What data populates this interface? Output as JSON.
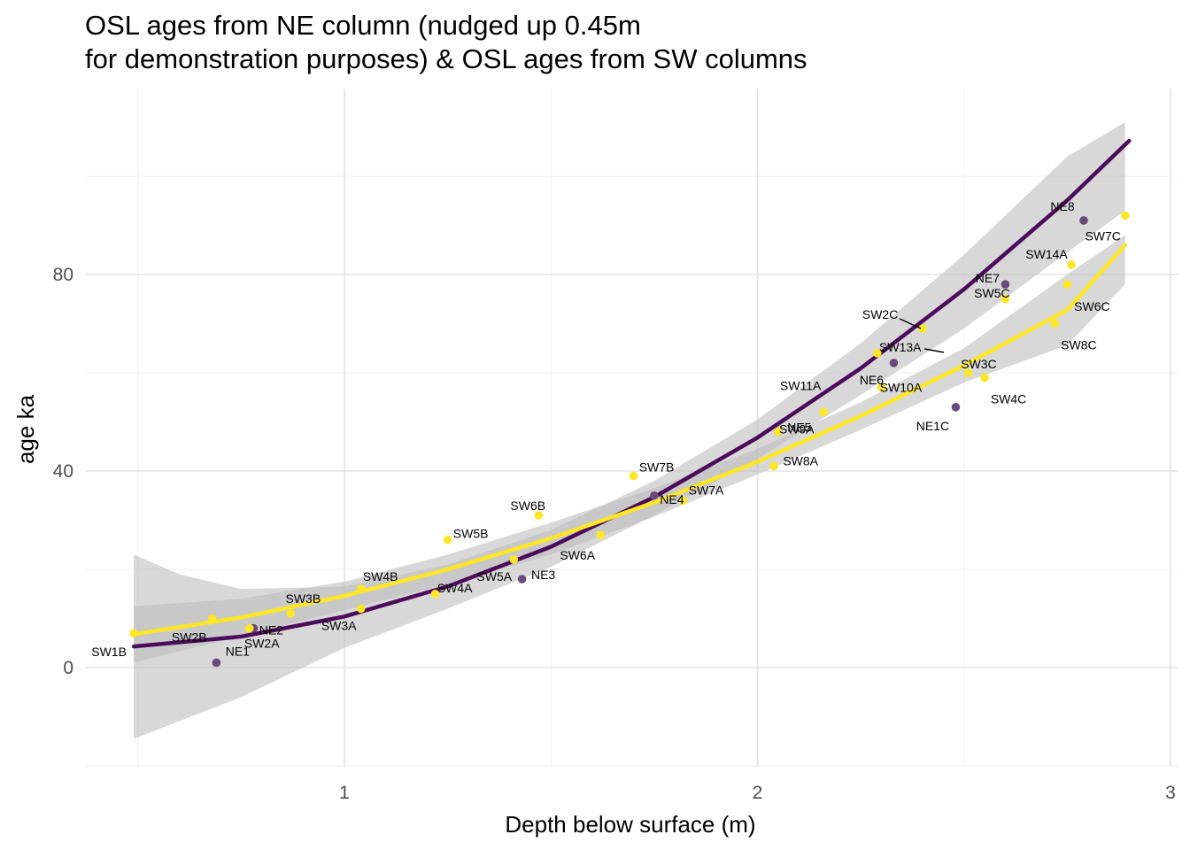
{
  "title_line1": "OSL ages from NE column (nudged up 0.45m",
  "title_line2": "for demonstration purposes) & OSL ages from SW columns",
  "chart_data": {
    "type": "scatter",
    "title": "OSL ages from NE column (nudged up 0.45m\nfor demonstration purposes) & OSL ages from SW columns",
    "xlabel": "Depth below surface (m)",
    "ylabel": "age ka",
    "xlim": [
      0.4,
      3.02
    ],
    "ylim": [
      -20,
      110
    ],
    "x_ticks": [
      1,
      2,
      3
    ],
    "y_ticks": [
      0,
      40,
      80
    ],
    "grid": true,
    "colors": {
      "ne": "#440154",
      "ne_point": "#6a4a7c",
      "sw": "#fde725",
      "ribbon": "#bebebe"
    },
    "series": [
      {
        "key": "ne",
        "points": [
          {
            "label": "NE1",
            "x": 0.69,
            "y": 1
          },
          {
            "label": "NE2",
            "x": 0.78,
            "y": 8
          },
          {
            "label": "NE3",
            "x": 1.43,
            "y": 18
          },
          {
            "label": "NE4",
            "x": 1.75,
            "y": 35
          },
          {
            "label": "NE5",
            "x": 2.05,
            "y": 48
          },
          {
            "label": "NE6",
            "x": 2.33,
            "y": 62
          },
          {
            "label": "NE1C",
            "x": 2.48,
            "y": 53
          },
          {
            "label": "NE7",
            "x": 2.6,
            "y": 78
          },
          {
            "label": "NE8",
            "x": 2.79,
            "y": 91
          }
        ],
        "fit": [
          [
            0.49,
            4.3
          ],
          [
            0.75,
            6.3
          ],
          [
            1.0,
            10.4
          ],
          [
            1.25,
            16.5
          ],
          [
            1.5,
            24.6
          ],
          [
            1.75,
            34.7
          ],
          [
            2.0,
            46.8
          ],
          [
            2.25,
            60.9
          ],
          [
            2.5,
            77.0
          ],
          [
            2.75,
            95.1
          ],
          [
            2.9,
            107.2
          ]
        ],
        "ribbon_upper": [
          [
            0.49,
            23
          ],
          [
            0.6,
            19
          ],
          [
            0.75,
            16
          ],
          [
            1.0,
            16.5
          ],
          [
            1.25,
            21
          ],
          [
            1.5,
            28
          ],
          [
            1.75,
            38
          ],
          [
            2.0,
            50.5
          ],
          [
            2.25,
            66
          ],
          [
            2.5,
            84
          ],
          [
            2.75,
            104
          ],
          [
            2.89,
            111
          ]
        ],
        "ribbon_lower": [
          [
            0.49,
            -14.5
          ],
          [
            0.75,
            -6
          ],
          [
            1.0,
            4
          ],
          [
            1.25,
            12
          ],
          [
            1.5,
            20.5
          ],
          [
            1.75,
            31
          ],
          [
            2.0,
            42.5
          ],
          [
            2.25,
            55.5
          ],
          [
            2.5,
            69
          ],
          [
            2.75,
            84.5
          ],
          [
            2.89,
            93
          ]
        ]
      },
      {
        "key": "sw",
        "points": [
          {
            "label": "SW1B",
            "x": 0.49,
            "y": 7
          },
          {
            "label": "SW2B",
            "x": 0.68,
            "y": 10
          },
          {
            "label": "SW2A",
            "x": 0.77,
            "y": 8
          },
          {
            "label": "SW3B",
            "x": 0.87,
            "y": 11
          },
          {
            "label": "SW3A",
            "x": 1.04,
            "y": 12
          },
          {
            "label": "SW4B",
            "x": 1.04,
            "y": 16
          },
          {
            "label": "SW4A",
            "x": 1.22,
            "y": 15
          },
          {
            "label": "SW5B",
            "x": 1.25,
            "y": 26
          },
          {
            "label": "SW5A",
            "x": 1.41,
            "y": 22
          },
          {
            "label": "SW6B",
            "x": 1.47,
            "y": 31
          },
          {
            "label": "SW6A",
            "x": 1.62,
            "y": 27
          },
          {
            "label": "SW7B",
            "x": 1.7,
            "y": 39
          },
          {
            "label": "SW7A",
            "x": 1.82,
            "y": 34
          },
          {
            "label": "SW8A",
            "x": 2.04,
            "y": 41
          },
          {
            "label": "SW9A",
            "x": 2.05,
            "y": 48
          },
          {
            "label": "SW11A",
            "x": 2.16,
            "y": 52
          },
          {
            "label": "SW10A",
            "x": 2.3,
            "y": 57
          },
          {
            "label": "SW13A",
            "x": 2.29,
            "y": 64
          },
          {
            "label": "SW2C",
            "x": 2.4,
            "y": 69
          },
          {
            "label": "SW3C",
            "x": 2.51,
            "y": 60
          },
          {
            "label": "SW4C",
            "x": 2.55,
            "y": 59
          },
          {
            "label": "SW5C",
            "x": 2.6,
            "y": 75
          },
          {
            "label": "SW8C",
            "x": 2.72,
            "y": 70
          },
          {
            "label": "SW6C",
            "x": 2.75,
            "y": 78
          },
          {
            "label": "SW14A",
            "x": 2.76,
            "y": 82
          },
          {
            "label": "SW7C",
            "x": 2.89,
            "y": 92
          }
        ],
        "fit": [
          [
            0.49,
            6.8
          ],
          [
            0.75,
            10.2
          ],
          [
            1.0,
            14.6
          ],
          [
            1.25,
            20.0
          ],
          [
            1.5,
            26.3
          ],
          [
            1.75,
            33.6
          ],
          [
            2.0,
            41.9
          ],
          [
            2.25,
            51.2
          ],
          [
            2.5,
            61.5
          ],
          [
            2.75,
            72.8
          ],
          [
            2.89,
            86
          ]
        ],
        "ribbon_upper": [
          [
            0.49,
            12.5
          ],
          [
            0.75,
            14
          ],
          [
            1.0,
            17.5
          ],
          [
            1.25,
            23
          ],
          [
            1.5,
            29.5
          ],
          [
            1.75,
            36.5
          ],
          [
            2.0,
            44.5
          ],
          [
            2.25,
            54
          ],
          [
            2.5,
            65
          ],
          [
            2.75,
            80
          ],
          [
            2.89,
            88
          ]
        ],
        "ribbon_lower": [
          [
            0.49,
            1
          ],
          [
            0.75,
            6.4
          ],
          [
            1.0,
            11.7
          ],
          [
            1.25,
            17
          ],
          [
            1.5,
            23
          ],
          [
            1.75,
            30.7
          ],
          [
            2.0,
            39.3
          ],
          [
            2.25,
            48.4
          ],
          [
            2.5,
            58
          ],
          [
            2.75,
            65.6
          ],
          [
            2.89,
            78
          ]
        ]
      }
    ]
  }
}
